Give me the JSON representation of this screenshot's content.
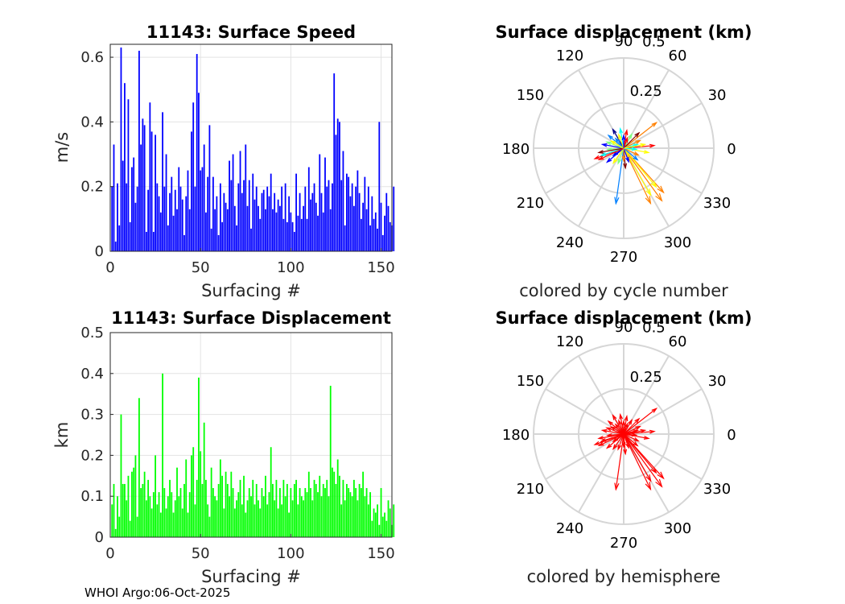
{
  "footer": "WHOI Argo:06-Oct-2025",
  "chart_data": [
    {
      "type": "bar",
      "title": "11143: Surface Speed",
      "xlabel": "Surfacing #",
      "ylabel": "m/s",
      "xlim": [
        0,
        156
      ],
      "ylim": [
        0,
        0.64
      ],
      "xticks": [
        "0",
        "50",
        "100",
        "150"
      ],
      "yticks": [
        "0",
        "0.2",
        "0.4",
        "0.6"
      ],
      "grid": true,
      "color": "#0000ff",
      "values": [
        0.2,
        0.33,
        0.03,
        0.21,
        0.08,
        0.63,
        0.28,
        0.52,
        0.21,
        0.47,
        0.09,
        0.26,
        0.29,
        0.15,
        0.2,
        0.62,
        0.33,
        0.41,
        0.39,
        0.06,
        0.19,
        0.46,
        0.37,
        0.06,
        0.36,
        0.21,
        0.17,
        0.12,
        0.43,
        0.2,
        0.3,
        0.08,
        0.18,
        0.23,
        0.11,
        0.19,
        0.13,
        0.26,
        0.2,
        0.16,
        0.05,
        0.17,
        0.25,
        0.13,
        0.37,
        0.46,
        0.2,
        0.61,
        0.49,
        0.25,
        0.26,
        0.33,
        0.12,
        0.23,
        0.39,
        0.07,
        0.23,
        0.13,
        0.17,
        0.05,
        0.21,
        0.09,
        0.18,
        0.15,
        0.13,
        0.28,
        0.22,
        0.3,
        0.14,
        0.08,
        0.21,
        0.31,
        0.18,
        0.22,
        0.33,
        0.14,
        0.22,
        0.07,
        0.24,
        0.16,
        0.2,
        0.14,
        0.1,
        0.18,
        0.19,
        0.13,
        0.2,
        0.17,
        0.24,
        0.13,
        0.18,
        0.12,
        0.16,
        0.14,
        0.2,
        0.1,
        0.21,
        0.09,
        0.17,
        0.12,
        0.09,
        0.06,
        0.24,
        0.11,
        0.18,
        0.1,
        0.14,
        0.2,
        0.1,
        0.26,
        0.16,
        0.18,
        0.21,
        0.15,
        0.11,
        0.3,
        0.18,
        0.12,
        0.29,
        0.2,
        0.22,
        0.13,
        0.21,
        0.55,
        0.36,
        0.41,
        0.4,
        0.22,
        0.31,
        0.08,
        0.24,
        0.23,
        0.17,
        0.21,
        0.14,
        0.2,
        0.25,
        0.18,
        0.1,
        0.15,
        0.23,
        0.13,
        0.2,
        0.08,
        0.17,
        0.1,
        0.12,
        0.07,
        0.4,
        0.15,
        0.05,
        0.11,
        0.18,
        0.14,
        0.09,
        0.08,
        0.2
      ]
    },
    {
      "type": "bar",
      "title": "11143: Surface Displacement",
      "xlabel": "Surfacing #",
      "ylabel": "km",
      "xlim": [
        0,
        156
      ],
      "ylim": [
        0,
        0.5
      ],
      "xticks": [
        "0",
        "50",
        "100",
        "150"
      ],
      "yticks": [
        "0",
        "0.1",
        "0.2",
        "0.3",
        "0.4",
        "0.5"
      ],
      "grid": true,
      "color": "#00ff00",
      "values": [
        0.08,
        0.13,
        0.02,
        0.1,
        0.05,
        0.3,
        0.13,
        0.13,
        0.09,
        0.15,
        0.04,
        0.16,
        0.17,
        0.2,
        0.05,
        0.34,
        0.12,
        0.13,
        0.16,
        0.09,
        0.14,
        0.1,
        0.07,
        0.11,
        0.2,
        0.08,
        0.11,
        0.06,
        0.4,
        0.12,
        0.07,
        0.1,
        0.14,
        0.11,
        0.06,
        0.09,
        0.17,
        0.1,
        0.12,
        0.07,
        0.13,
        0.19,
        0.06,
        0.11,
        0.2,
        0.22,
        0.08,
        0.14,
        0.39,
        0.21,
        0.13,
        0.28,
        0.14,
        0.08,
        0.05,
        0.17,
        0.12,
        0.1,
        0.09,
        0.13,
        0.19,
        0.15,
        0.07,
        0.16,
        0.13,
        0.1,
        0.16,
        0.12,
        0.07,
        0.09,
        0.11,
        0.14,
        0.08,
        0.15,
        0.06,
        0.09,
        0.12,
        0.1,
        0.14,
        0.08,
        0.13,
        0.09,
        0.07,
        0.12,
        0.1,
        0.15,
        0.08,
        0.11,
        0.22,
        0.13,
        0.09,
        0.14,
        0.07,
        0.12,
        0.08,
        0.14,
        0.1,
        0.13,
        0.06,
        0.12,
        0.09,
        0.13,
        0.14,
        0.08,
        0.12,
        0.1,
        0.09,
        0.12,
        0.11,
        0.16,
        0.12,
        0.09,
        0.14,
        0.13,
        0.11,
        0.15,
        0.1,
        0.13,
        0.12,
        0.14,
        0.1,
        0.37,
        0.17,
        0.16,
        0.13,
        0.19,
        0.15,
        0.08,
        0.14,
        0.09,
        0.13,
        0.12,
        0.11,
        0.1,
        0.14,
        0.12,
        0.09,
        0.13,
        0.12,
        0.16,
        0.1,
        0.12,
        0.08,
        0.11,
        0.04,
        0.07,
        0.06,
        0.08,
        0.03,
        0.12,
        0.05,
        0.06,
        0.04,
        0.09,
        0.07,
        0.03,
        0.08
      ]
    },
    {
      "type": "polar-compass",
      "title": "Surface displacement (km)",
      "caption": "colored by cycle number",
      "rlim": [
        0,
        0.5
      ],
      "rtick_labels": [
        "0.25",
        "0.5"
      ],
      "angle_labels": [
        "0",
        "30",
        "60",
        "90",
        "120",
        "150",
        "180",
        "210",
        "240",
        "270",
        "300",
        "330"
      ],
      "color_mode": "cycle",
      "colormap": [
        "#00008f",
        "#0000ff",
        "#0080ff",
        "#00ffff",
        "#80ff80",
        "#ffff00",
        "#ff8000",
        "#ff0000",
        "#800000"
      ],
      "arrows": [
        {
          "angle": 306,
          "r": 0.36,
          "cycle": 120
        },
        {
          "angle": 296,
          "r": 0.34,
          "cycle": 121
        },
        {
          "angle": 312,
          "r": 0.33,
          "cycle": 122
        },
        {
          "angle": 300,
          "r": 0.3,
          "cycle": 100
        },
        {
          "angle": 310,
          "r": 0.28,
          "cycle": 95
        },
        {
          "angle": 262,
          "r": 0.31,
          "cycle": 30
        },
        {
          "angle": 38,
          "r": 0.23,
          "cycle": 110
        },
        {
          "angle": 200,
          "r": 0.17,
          "cycle": 140
        },
        {
          "angle": 198,
          "r": 0.13,
          "cycle": 60
        },
        {
          "angle": 5,
          "r": 0.17,
          "cycle": 130
        },
        {
          "angle": 350,
          "r": 0.14,
          "cycle": 90
        },
        {
          "angle": 170,
          "r": 0.12,
          "cycle": 20
        },
        {
          "angle": 160,
          "r": 0.1,
          "cycle": 75
        },
        {
          "angle": 140,
          "r": 0.11,
          "cycle": 40
        },
        {
          "angle": 120,
          "r": 0.12,
          "cycle": 5
        },
        {
          "angle": 100,
          "r": 0.11,
          "cycle": 65
        },
        {
          "angle": 80,
          "r": 0.1,
          "cycle": 135
        },
        {
          "angle": 60,
          "r": 0.09,
          "cycle": 85
        },
        {
          "angle": 45,
          "r": 0.12,
          "cycle": 148
        },
        {
          "angle": 25,
          "r": 0.1,
          "cycle": 115
        },
        {
          "angle": 15,
          "r": 0.08,
          "cycle": 55
        },
        {
          "angle": 220,
          "r": 0.12,
          "cycle": 10
        },
        {
          "angle": 235,
          "r": 0.1,
          "cycle": 105
        },
        {
          "angle": 250,
          "r": 0.09,
          "cycle": 70
        },
        {
          "angle": 275,
          "r": 0.11,
          "cycle": 150
        },
        {
          "angle": 290,
          "r": 0.08,
          "cycle": 25
        },
        {
          "angle": 320,
          "r": 0.1,
          "cycle": 45
        },
        {
          "angle": 335,
          "r": 0.09,
          "cycle": 125
        },
        {
          "angle": 185,
          "r": 0.09,
          "cycle": 80
        },
        {
          "angle": 190,
          "r": 0.14,
          "cycle": 152
        },
        {
          "angle": 130,
          "r": 0.07,
          "cycle": 35
        },
        {
          "angle": 110,
          "r": 0.08,
          "cycle": 98
        },
        {
          "angle": 70,
          "r": 0.06,
          "cycle": 145
        },
        {
          "angle": 215,
          "r": 0.07,
          "cycle": 15
        },
        {
          "angle": 355,
          "r": 0.07,
          "cycle": 50
        },
        {
          "angle": 10,
          "r": 0.12,
          "cycle": 102
        },
        {
          "angle": 205,
          "r": 0.15,
          "cycle": 128
        },
        {
          "angle": 150,
          "r": 0.08,
          "cycle": 88
        },
        {
          "angle": 90,
          "r": 0.07,
          "cycle": 12
        },
        {
          "angle": 270,
          "r": 0.07,
          "cycle": 118
        }
      ]
    },
    {
      "type": "polar-compass",
      "title": "Surface displacement (km)",
      "caption": "colored by hemisphere",
      "rlim": [
        0,
        0.5
      ],
      "rtick_labels": [
        "0.25",
        "0.5"
      ],
      "angle_labels": [
        "0",
        "30",
        "60",
        "90",
        "120",
        "150",
        "180",
        "210",
        "240",
        "270",
        "300",
        "330"
      ],
      "color_mode": "single",
      "color": "#ff0000",
      "arrows": [
        {
          "angle": 306,
          "r": 0.36
        },
        {
          "angle": 296,
          "r": 0.34
        },
        {
          "angle": 312,
          "r": 0.33
        },
        {
          "angle": 300,
          "r": 0.3
        },
        {
          "angle": 310,
          "r": 0.28
        },
        {
          "angle": 262,
          "r": 0.31
        },
        {
          "angle": 38,
          "r": 0.23
        },
        {
          "angle": 200,
          "r": 0.17
        },
        {
          "angle": 198,
          "r": 0.13
        },
        {
          "angle": 5,
          "r": 0.17
        },
        {
          "angle": 350,
          "r": 0.14
        },
        {
          "angle": 170,
          "r": 0.12
        },
        {
          "angle": 160,
          "r": 0.1
        },
        {
          "angle": 140,
          "r": 0.11
        },
        {
          "angle": 120,
          "r": 0.12
        },
        {
          "angle": 100,
          "r": 0.11
        },
        {
          "angle": 80,
          "r": 0.1
        },
        {
          "angle": 60,
          "r": 0.09
        },
        {
          "angle": 45,
          "r": 0.12
        },
        {
          "angle": 25,
          "r": 0.1
        },
        {
          "angle": 15,
          "r": 0.08
        },
        {
          "angle": 220,
          "r": 0.12
        },
        {
          "angle": 235,
          "r": 0.1
        },
        {
          "angle": 250,
          "r": 0.09
        },
        {
          "angle": 275,
          "r": 0.11
        },
        {
          "angle": 290,
          "r": 0.08
        },
        {
          "angle": 320,
          "r": 0.1
        },
        {
          "angle": 335,
          "r": 0.09
        },
        {
          "angle": 185,
          "r": 0.09
        },
        {
          "angle": 190,
          "r": 0.14
        },
        {
          "angle": 130,
          "r": 0.07
        },
        {
          "angle": 110,
          "r": 0.08
        },
        {
          "angle": 70,
          "r": 0.06
        },
        {
          "angle": 215,
          "r": 0.07
        },
        {
          "angle": 355,
          "r": 0.07
        },
        {
          "angle": 10,
          "r": 0.12
        },
        {
          "angle": 205,
          "r": 0.15
        },
        {
          "angle": 150,
          "r": 0.08
        },
        {
          "angle": 90,
          "r": 0.07
        },
        {
          "angle": 270,
          "r": 0.07
        }
      ]
    }
  ]
}
